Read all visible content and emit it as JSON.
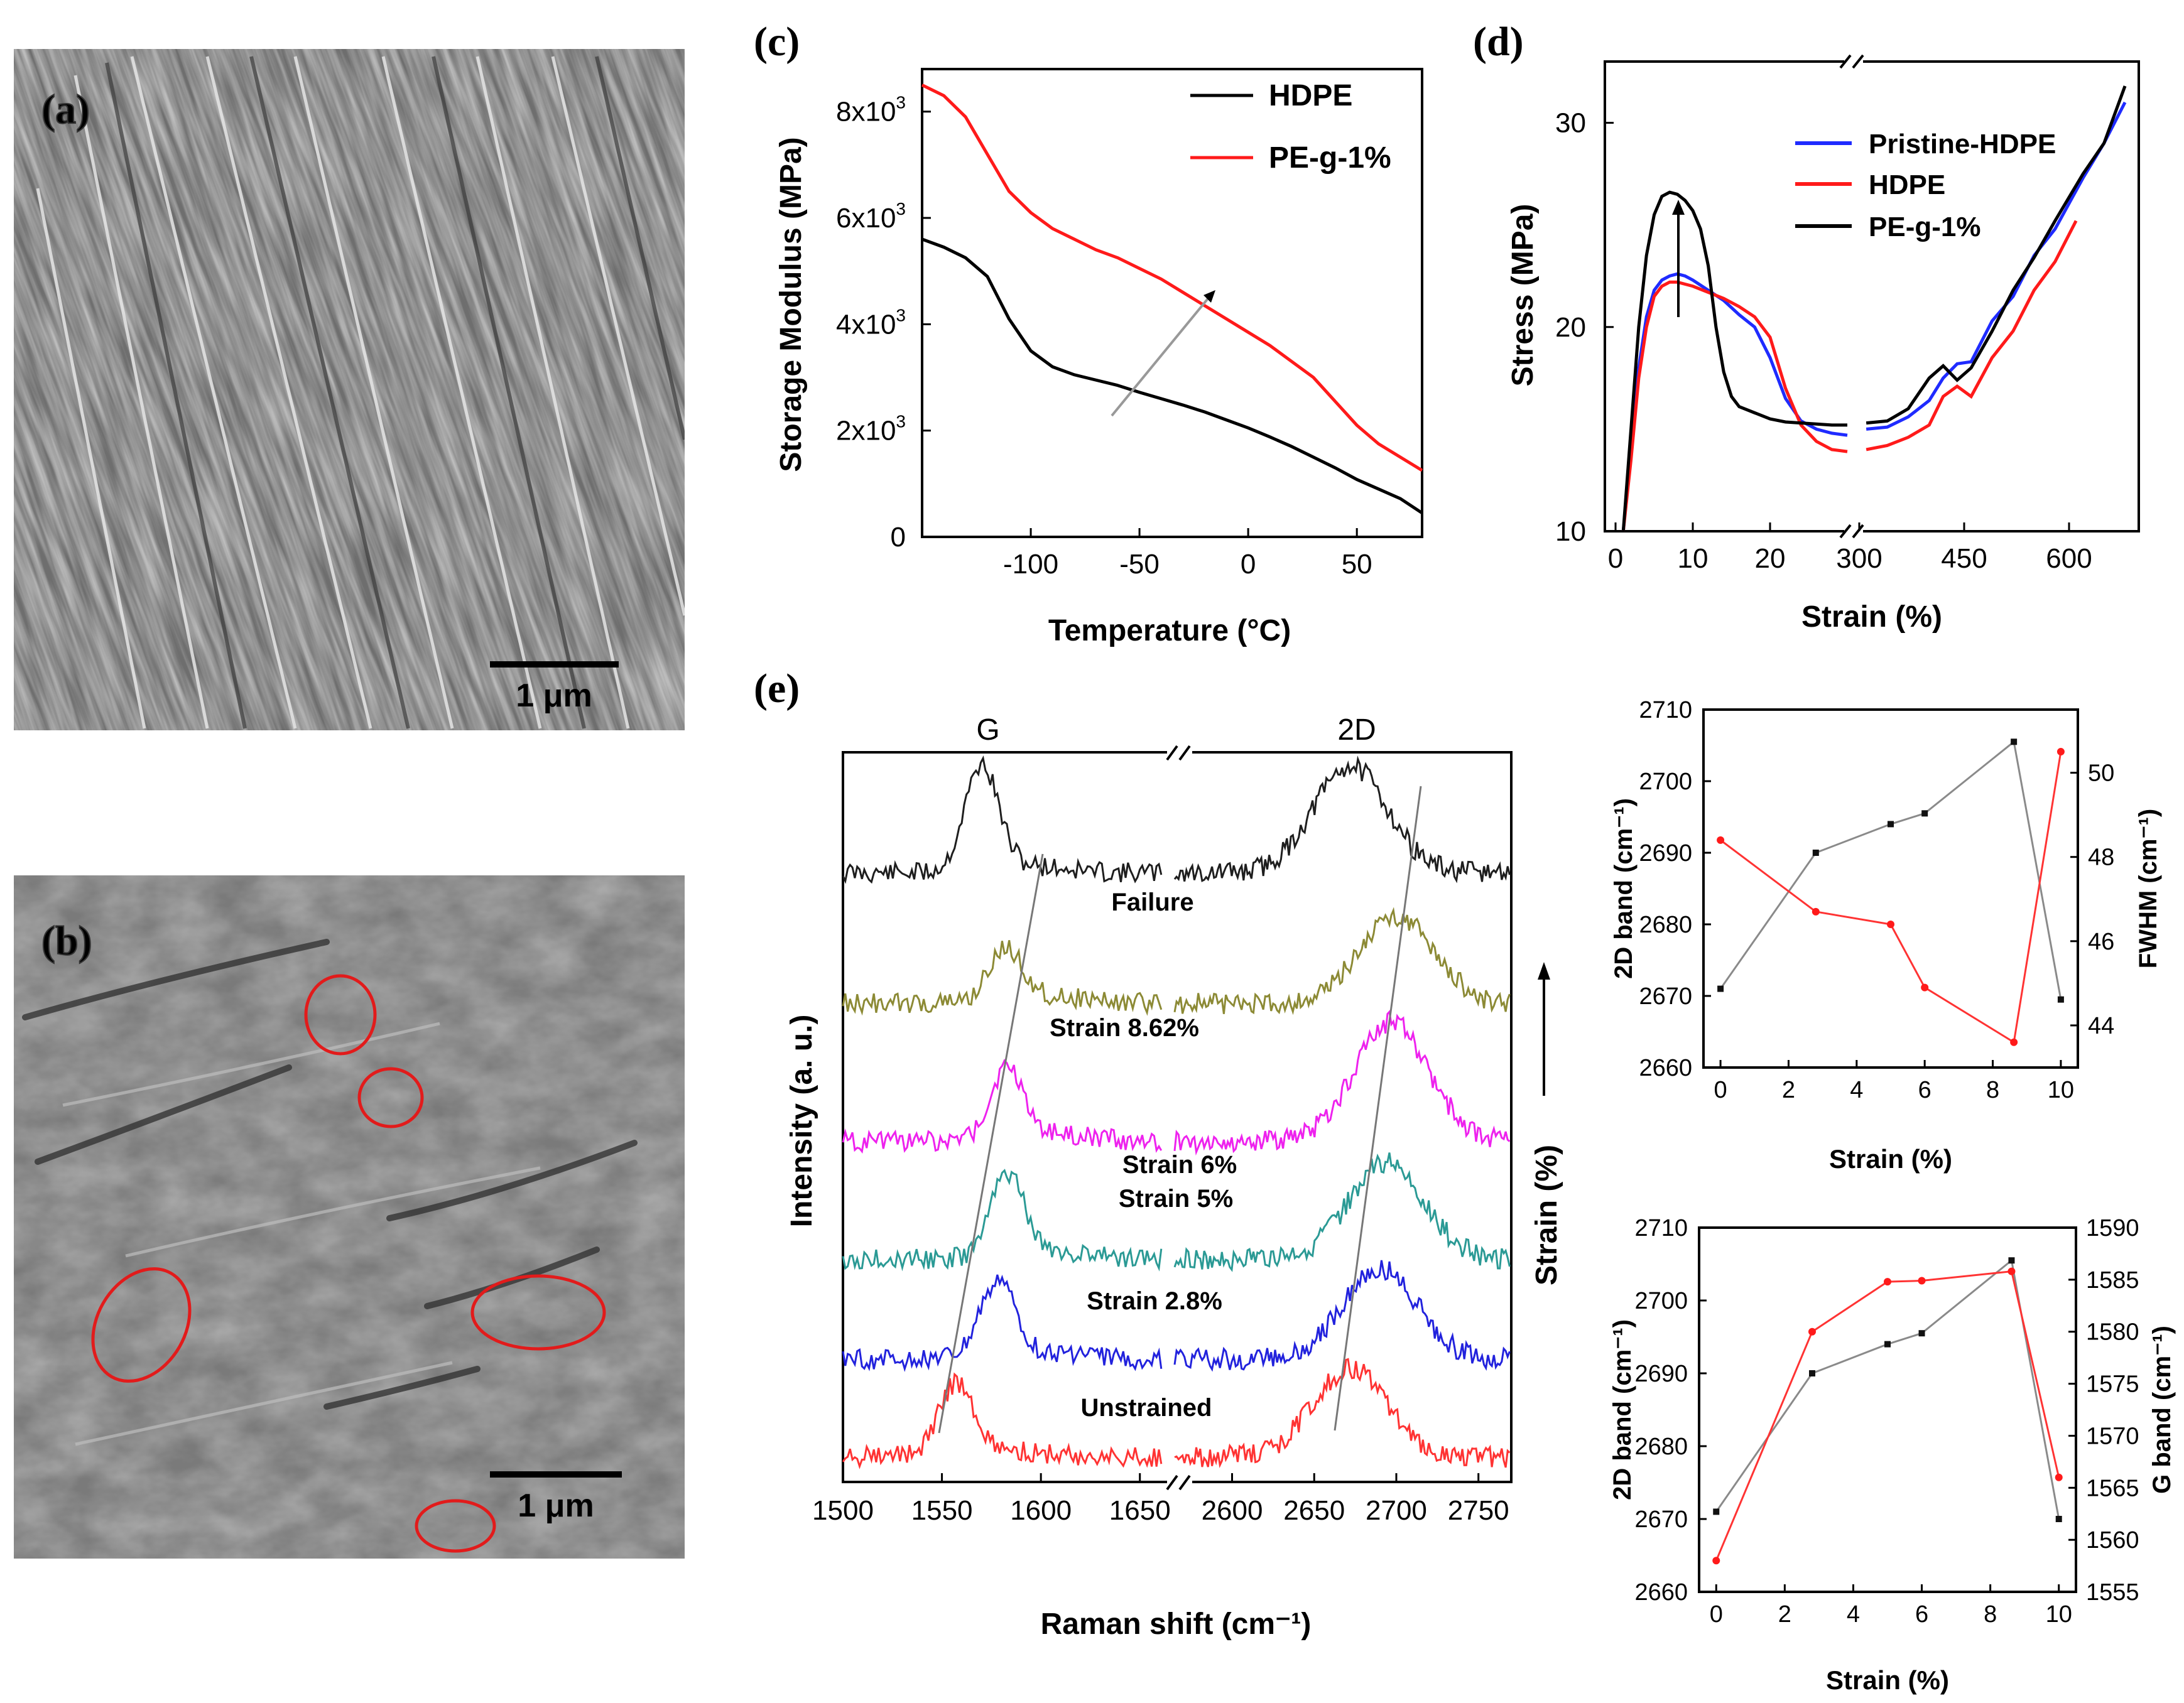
{
  "panel_a": {
    "label": "(a)",
    "scalebar": "1 μm"
  },
  "panel_b": {
    "label": "(b)",
    "scalebar": "1 μm"
  },
  "colors": {
    "hdpe": "#000000",
    "peg": "#ff1a1a",
    "pristine": "#1f2bff",
    "red_axis": "#ff0000"
  },
  "chart_data": [
    {
      "id": "c",
      "panel_label": "(c)",
      "type": "line",
      "xlabel": "Temperature (°C)",
      "ylabel": "Storage Modulus (MPa)",
      "xlim": [
        -150,
        80
      ],
      "ylim": [
        0,
        8800
      ],
      "x_ticks": [
        "-100",
        "-50",
        "0",
        "50"
      ],
      "y_ticks": [
        "0",
        "2x10",
        "4x10",
        "6x10",
        "8x10"
      ],
      "y_tick_exp": "3",
      "series": [
        {
          "name": "HDPE",
          "x": [
            -150,
            -140,
            -130,
            -120,
            -110,
            -100,
            -90,
            -80,
            -70,
            -60,
            -50,
            -40,
            -30,
            -20,
            -10,
            0,
            10,
            20,
            30,
            40,
            50,
            60,
            70,
            80
          ],
          "values": [
            5600,
            5450,
            5250,
            4900,
            4100,
            3500,
            3200,
            3050,
            2950,
            2850,
            2720,
            2600,
            2480,
            2350,
            2200,
            2050,
            1880,
            1700,
            1500,
            1300,
            1080,
            900,
            720,
            450
          ]
        },
        {
          "name": "PE-g-1%",
          "x": [
            -150,
            -140,
            -130,
            -120,
            -110,
            -100,
            -90,
            -80,
            -70,
            -60,
            -50,
            -40,
            -30,
            -20,
            -10,
            0,
            10,
            20,
            30,
            40,
            50,
            60,
            70,
            80
          ],
          "values": [
            8500,
            8300,
            7900,
            7200,
            6500,
            6100,
            5800,
            5600,
            5400,
            5250,
            5050,
            4850,
            4600,
            4350,
            4100,
            3850,
            3600,
            3300,
            3000,
            2550,
            2100,
            1750,
            1500,
            1250
          ]
        }
      ]
    },
    {
      "id": "d",
      "panel_label": "(d)",
      "type": "line",
      "xlabel": "Strain (%)",
      "ylabel": "Stress (MPa)",
      "x_ticks": [
        "0",
        "10",
        "20",
        "300",
        "450",
        "600"
      ],
      "y_ticks": [
        "10",
        "20",
        "30"
      ],
      "ylim": [
        10,
        33
      ],
      "series": [
        {
          "name": "Pristine-HDPE",
          "segment1": {
            "x": [
              1,
              2,
              3,
              4,
              5,
              6,
              7,
              8,
              9,
              10,
              12,
              14,
              16,
              18,
              20,
              22,
              24,
              26,
              28,
              30
            ],
            "values": [
              10,
              14,
              18,
              20.5,
              21.8,
              22.3,
              22.5,
              22.6,
              22.5,
              22.3,
              21.8,
              21.3,
              20.6,
              20,
              18.5,
              16.5,
              15.4,
              15,
              14.8,
              14.7
            ]
          },
          "segment2": {
            "x": [
              310,
              340,
              370,
              400,
              420,
              440,
              460,
              490,
              520,
              550,
              580,
              620,
              650,
              680
            ],
            "values": [
              15,
              15.1,
              15.6,
              16.4,
              17.5,
              18.2,
              18.3,
              20.3,
              21.5,
              23.5,
              24.8,
              27.3,
              29,
              31
            ]
          }
        },
        {
          "name": "HDPE",
          "segment1": {
            "x": [
              1,
              2,
              3,
              4,
              5,
              6,
              7,
              8,
              9,
              10,
              12,
              14,
              16,
              18,
              20,
              22,
              24,
              26,
              28,
              30
            ],
            "values": [
              10,
              13.5,
              17.5,
              20,
              21.5,
              22,
              22.2,
              22.2,
              22.1,
              22,
              21.7,
              21.4,
              21,
              20.5,
              19.5,
              17,
              15.2,
              14.4,
              14,
              13.9
            ]
          },
          "segment2": {
            "x": [
              310,
              340,
              370,
              400,
              420,
              440,
              460,
              490,
              520,
              550,
              580,
              610
            ],
            "values": [
              14,
              14.2,
              14.6,
              15.2,
              16.6,
              17.1,
              16.6,
              18.5,
              19.8,
              21.8,
              23.2,
              25.2
            ]
          }
        },
        {
          "name": "PE-g-1%",
          "segment1": {
            "x": [
              1,
              2,
              3,
              4,
              5,
              6,
              7,
              8,
              9,
              10,
              11,
              12,
              13,
              14,
              15,
              16,
              18,
              20,
              22,
              24,
              26,
              28,
              30
            ],
            "values": [
              10,
              15,
              20,
              23.5,
              25.5,
              26.4,
              26.6,
              26.5,
              26.2,
              25.7,
              24.8,
              23,
              20,
              17.8,
              16.6,
              16.1,
              15.8,
              15.5,
              15.35,
              15.3,
              15.25,
              15.2,
              15.2
            ]
          },
          "segment2": {
            "x": [
              310,
              340,
              370,
              400,
              420,
              440,
              460,
              490,
              520,
              550,
              580,
              620,
              650,
              680
            ],
            "values": [
              15.3,
              15.4,
              16,
              17.5,
              18.1,
              17.4,
              18,
              19.8,
              21.8,
              23.4,
              25.2,
              27.5,
              29,
              31.8
            ]
          }
        }
      ]
    },
    {
      "id": "e",
      "panel_label": "(e)",
      "type": "line",
      "xlabel": "Raman shift (cm⁻¹)",
      "ylabel": "Intensity (a. u.)",
      "side_label": "Strain (%)",
      "band_labels": [
        "G",
        "2D"
      ],
      "x_ticks": [
        "1500",
        "1550",
        "1600",
        "1650",
        "2600",
        "2650",
        "2700",
        "2750"
      ],
      "spectra": [
        {
          "name": "Failure",
          "g_center": 1570,
          "d_center": 2672
        },
        {
          "name": "Strain 8.62%",
          "g_center": 1582,
          "d_center": 2700
        },
        {
          "name": "Strain 6%",
          "g_center": 1583,
          "d_center": 2697
        },
        {
          "name": "Strain 5%",
          "g_center": 1583,
          "d_center": 2694
        },
        {
          "name": "Strain 2.8%",
          "g_center": 1578,
          "d_center": 2690
        },
        {
          "name": "Unstrained",
          "g_center": 1557,
          "d_center": 2672
        }
      ]
    },
    {
      "id": "e-top",
      "type": "line",
      "xlabel": "Strain (%)",
      "ylabel": "2D band (cm⁻¹)",
      "y2label": "FWHM (cm⁻¹)",
      "xlim": [
        -0.5,
        10.5
      ],
      "ylim": [
        2660,
        2710
      ],
      "y2lim": [
        43,
        51.5
      ],
      "x_ticks": [
        "0",
        "2",
        "4",
        "6",
        "8",
        "10"
      ],
      "y_ticks": [
        "2660",
        "2670",
        "2680",
        "2690",
        "2700",
        "2710"
      ],
      "y2_ticks": [
        "44",
        "46",
        "48",
        "50"
      ],
      "x": [
        0,
        2.8,
        5,
        6,
        8.62,
        10
      ],
      "series": [
        {
          "name": "2D band",
          "axis": "left",
          "values": [
            2671,
            2690,
            2694,
            2695.5,
            2705.5,
            2669.5
          ]
        },
        {
          "name": "FWHM",
          "axis": "right",
          "values": [
            48.4,
            46.7,
            46.4,
            44.9,
            43.6,
            50.5
          ]
        }
      ]
    },
    {
      "id": "e-bottom",
      "type": "line",
      "xlabel": "Strain (%)",
      "ylabel": "2D band (cm⁻¹)",
      "y2label": "G band (cm⁻¹)",
      "xlim": [
        -0.5,
        10.5
      ],
      "ylim": [
        2660,
        2710
      ],
      "y2lim": [
        1555,
        1590
      ],
      "x_ticks": [
        "0",
        "2",
        "4",
        "6",
        "8",
        "10"
      ],
      "y_ticks": [
        "2660",
        "2670",
        "2680",
        "2690",
        "2700",
        "2710"
      ],
      "y2_ticks": [
        "1555",
        "1560",
        "1565",
        "1570",
        "1575",
        "1580",
        "1585",
        "1590"
      ],
      "x": [
        0,
        2.8,
        5,
        6,
        8.62,
        10
      ],
      "series": [
        {
          "name": "2D band",
          "axis": "left",
          "values": [
            2671,
            2690,
            2694,
            2695.5,
            2705.5,
            2670
          ]
        },
        {
          "name": "G band",
          "axis": "right",
          "values": [
            1558,
            1580,
            1584.8,
            1584.9,
            1585.8,
            1566
          ]
        }
      ]
    }
  ]
}
